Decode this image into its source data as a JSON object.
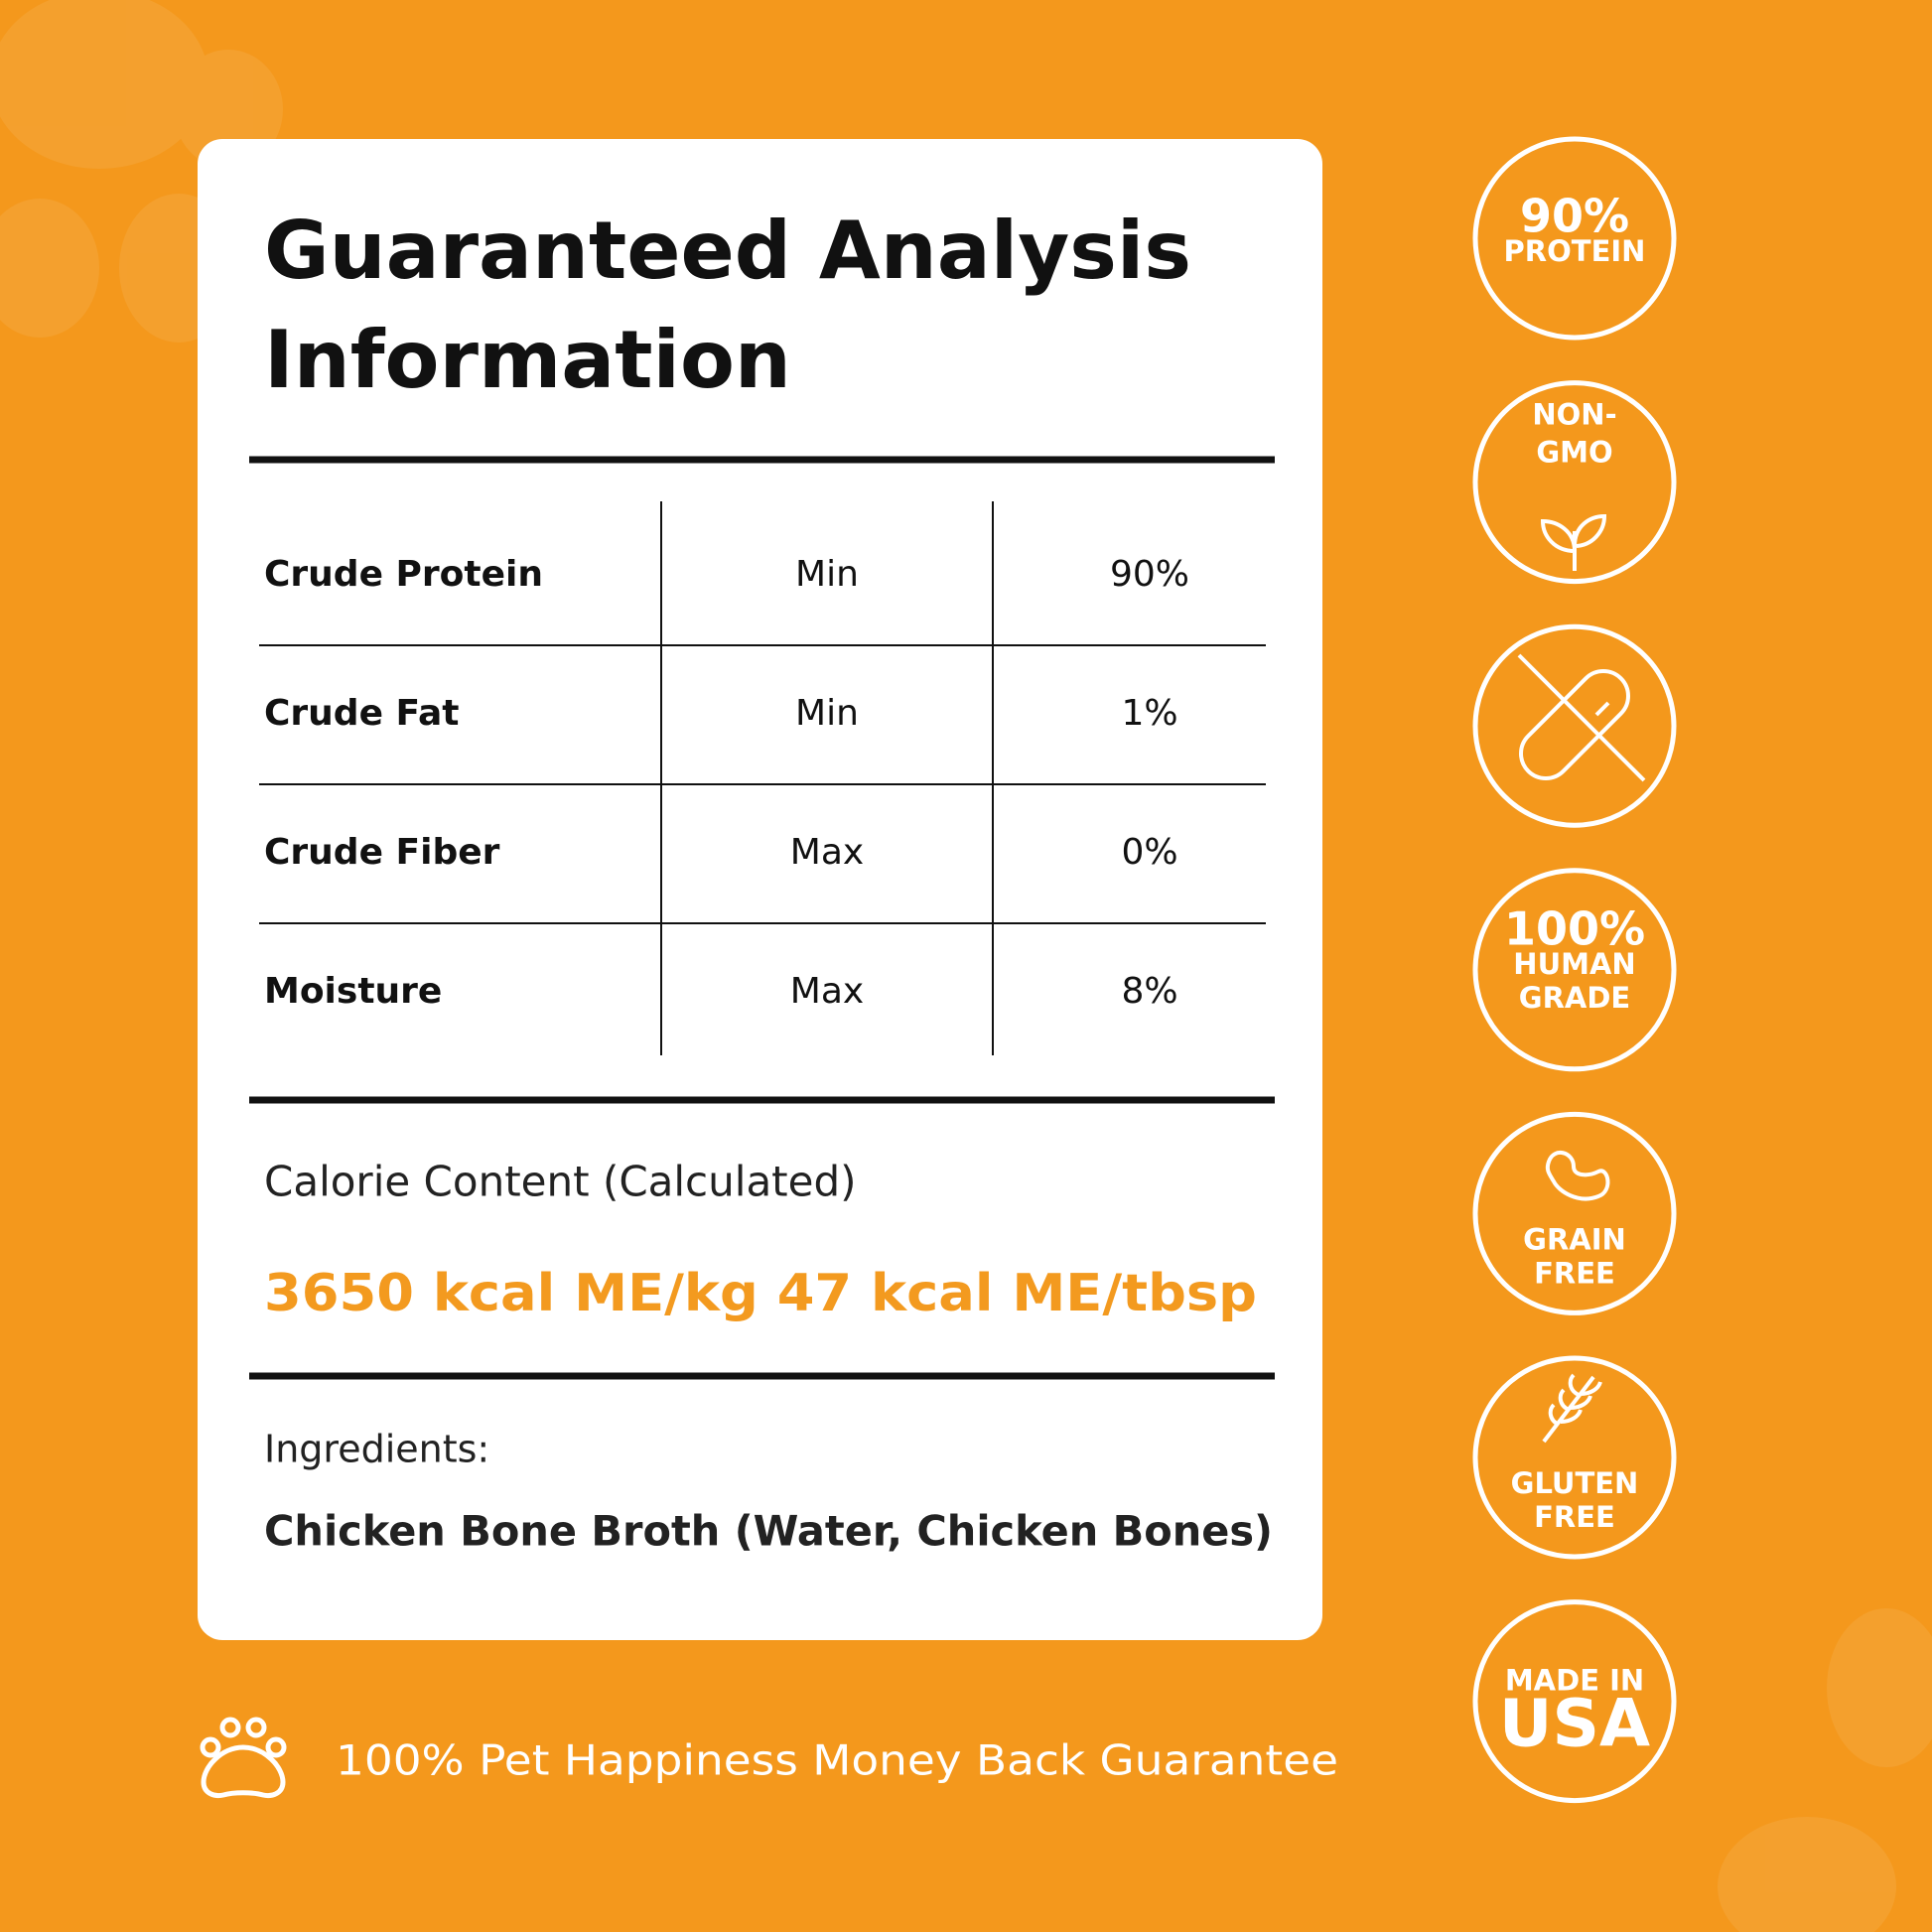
{
  "card": {
    "title_lines": [
      "Guaranteed Analysis",
      "Information"
    ],
    "table": {
      "rows": [
        [
          "Crude Protein",
          "Min",
          "90%"
        ],
        [
          "Crude Fat",
          "Min",
          "1%"
        ],
        [
          "Crude Fiber",
          "Max",
          "0%"
        ],
        [
          "Moisture",
          "Max",
          "8%"
        ]
      ]
    },
    "calorie_label": "Calorie Content (Calculated)",
    "calorie_value": "3650 kcal ME/kg 47 kcal ME/tbsp",
    "ingredients_label": "Ingredients:",
    "ingredients": "Chicken Bone Broth (Water, Chicken Bones)"
  },
  "badges": [
    [
      "90%",
      "PROTEIN"
    ],
    [
      "NON-",
      "GMO"
    ],
    [],
    [
      "100%",
      "HUMAN",
      "GRADE"
    ],
    [
      "GRAIN",
      "FREE"
    ],
    [
      "GLUTEN",
      "FREE"
    ],
    [
      "MADE IN",
      "USA"
    ]
  ],
  "guarantee": "100% Pet Happiness Money Back Guarantee"
}
